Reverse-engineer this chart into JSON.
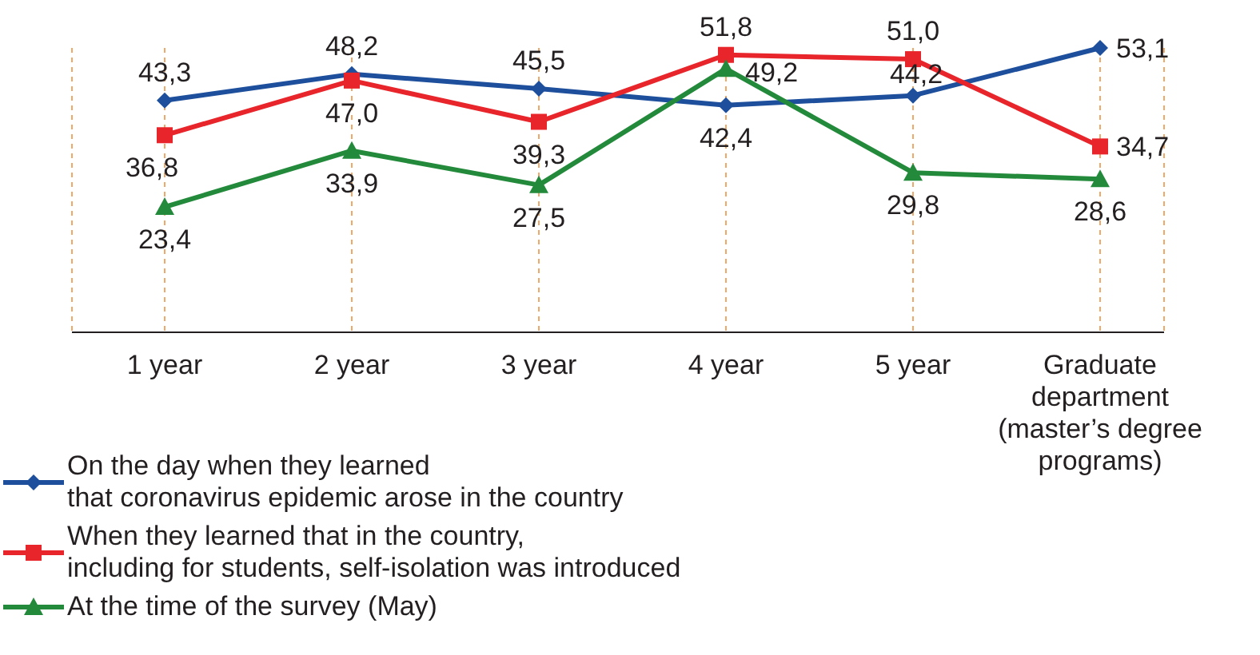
{
  "chart_data": {
    "type": "line",
    "categories": [
      "1 year",
      "2 year",
      "3 year",
      "4 year",
      "5 year",
      "Graduate department (master’s degree programs)"
    ],
    "series": [
      {
        "name": "On the day when they learned\nthat coronavirus epidemic arose in the country",
        "color": "#1d4f9c",
        "marker": "diamond",
        "values": [
          43.3,
          48.2,
          45.5,
          42.4,
          44.2,
          53.1
        ],
        "value_labels": [
          "43,3",
          "48,2",
          "45,5",
          "42,4",
          "44,2",
          "53,1"
        ]
      },
      {
        "name": "When they learned that in the country,\nincluding for students, self-isolation was introduced",
        "color": "#e8252a",
        "marker": "square",
        "values": [
          36.8,
          47.0,
          39.3,
          51.8,
          51.0,
          34.7
        ],
        "value_labels": [
          "36,8",
          "47,0",
          "39,3",
          "51,8",
          "51,0",
          "34,7"
        ]
      },
      {
        "name": "At the time of the survey (May)",
        "color": "#238a3b",
        "marker": "triangle",
        "values": [
          23.4,
          33.9,
          27.5,
          49.2,
          29.8,
          28.6
        ],
        "value_labels": [
          "23,4",
          "33,9",
          "27,5",
          "49,2",
          "29,8",
          "28,6"
        ]
      }
    ],
    "grid": "x",
    "legend": "bottom left"
  }
}
